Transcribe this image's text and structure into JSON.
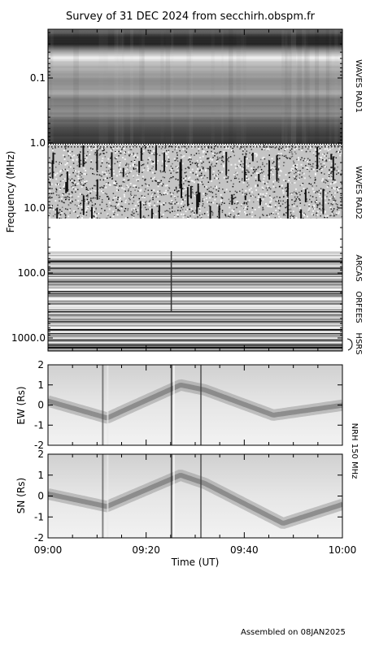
{
  "chart_data": {
    "type": "heatmap",
    "title": "Survey of 31 DEC 2024 from secchirh.obspm.fr",
    "xlabel": "Time (UT)",
    "x_ticks": [
      "09:00",
      "09:20",
      "09:40",
      "10:00"
    ],
    "xlim": [
      "09:00",
      "10:00"
    ],
    "panels": [
      {
        "name": "spectrum",
        "ylabel": "Frequency (MHz)",
        "scale": "log",
        "y_ticks": [
          "0.1",
          "1.0",
          "10.0",
          "100.0",
          "1000.0"
        ],
        "instruments": [
          "WAVES RAD1",
          "WAVES RAD2",
          "ARCAS",
          "ORFEES",
          "HSRS"
        ]
      },
      {
        "name": "ew",
        "ylabel": "EW (Rs)",
        "ylim": [
          -2,
          2
        ],
        "y_ticks": [
          "2",
          "1",
          "0",
          "-1",
          "-2"
        ]
      },
      {
        "name": "sn",
        "ylabel": "SN (Rs)",
        "ylim": [
          -2,
          2
        ],
        "y_ticks": [
          "2",
          "1",
          "0",
          "-1",
          "-2"
        ]
      }
    ],
    "nrh_label": "NRH 150 MHz"
  },
  "footer": "Assembled on 08JAN2025"
}
